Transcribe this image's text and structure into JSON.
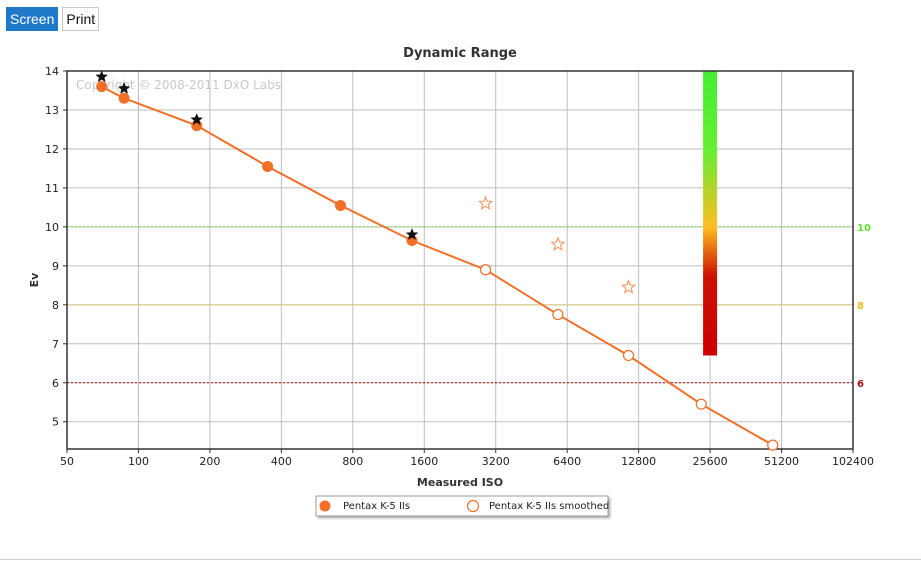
{
  "tabs": [
    {
      "label": "Screen",
      "active": true
    },
    {
      "label": "Print",
      "active": false
    }
  ],
  "chart_data": {
    "type": "scatter",
    "title": "Dynamic Range",
    "xlabel": "Measured ISO",
    "ylabel": "Ev",
    "x_scale": "log2",
    "xlim": [
      50,
      102400
    ],
    "ylim": [
      4.3,
      14
    ],
    "x_ticks": [
      "50",
      "100",
      "200",
      "400",
      "800",
      "1600",
      "3200",
      "6400",
      "12800",
      "25600",
      "51200",
      "102400"
    ],
    "y_ticks": [
      "5",
      "6",
      "7",
      "8",
      "9",
      "10",
      "11",
      "12",
      "13",
      "14"
    ],
    "watermark": "Copyright © 2008-2011 DxO Labs",
    "series": [
      {
        "name": "Pentax K-5 IIs",
        "marker": "filled-circle",
        "color": "#f07028",
        "points": [
          [
            70,
            13.6
          ],
          [
            87,
            13.3
          ],
          [
            176,
            12.6
          ],
          [
            350,
            11.55
          ],
          [
            710,
            10.55
          ],
          [
            1420,
            9.65
          ]
        ]
      },
      {
        "name": "Pentax K-5 IIs smoothed",
        "marker": "open-circle",
        "color": "#f07028",
        "points": [
          [
            2900,
            8.9
          ],
          [
            5850,
            7.75
          ],
          [
            11600,
            6.7
          ],
          [
            23500,
            5.45
          ],
          [
            47000,
            4.4
          ]
        ]
      }
    ],
    "star_points_black": [
      [
        70,
        13.85
      ],
      [
        87,
        13.55
      ],
      [
        176,
        12.75
      ],
      [
        1420,
        9.8
      ]
    ],
    "star_points_open": [
      [
        2900,
        10.6
      ],
      [
        5850,
        9.55
      ],
      [
        11600,
        8.45
      ]
    ],
    "thresholds": [
      {
        "value": 10,
        "label": "10",
        "color": "#66dd33"
      },
      {
        "value": 8,
        "label": "8",
        "color": "#e8c020"
      },
      {
        "value": 6,
        "label": "6",
        "color": "#aa1111"
      }
    ],
    "gauge": {
      "x": 25600,
      "y_bottom": 6.7,
      "y_top": 14
    },
    "legend_position": "bottom-center"
  }
}
